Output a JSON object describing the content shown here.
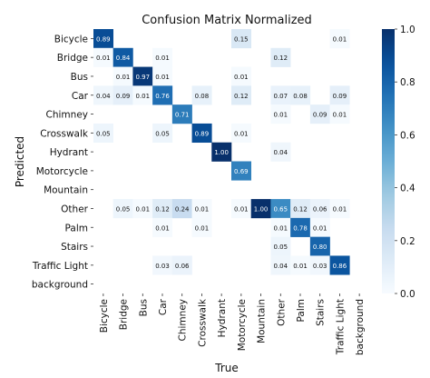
{
  "chart_data": {
    "type": "heatmap",
    "title": "Confusion Matrix Normalized",
    "xlabel": "True",
    "ylabel": "Predicted",
    "x_categories": [
      "Bicycle",
      "Bridge",
      "Bus",
      "Car",
      "Chimney",
      "Crosswalk",
      "Hydrant",
      "Motorcycle",
      "Mountain",
      "Other",
      "Palm",
      "Stairs",
      "Traffic Light",
      "background"
    ],
    "y_categories": [
      "Bicycle",
      "Bridge",
      "Bus",
      "Car",
      "Chimney",
      "Crosswalk",
      "Hydrant",
      "Motorcycle",
      "Mountain",
      "Other",
      "Palm",
      "Stairs",
      "Traffic Light",
      "background"
    ],
    "cells": [
      {
        "row": 0,
        "col": 0,
        "value": 0.89
      },
      {
        "row": 0,
        "col": 7,
        "value": 0.15
      },
      {
        "row": 0,
        "col": 12,
        "value": 0.01
      },
      {
        "row": 1,
        "col": 0,
        "value": 0.01
      },
      {
        "row": 1,
        "col": 1,
        "value": 0.84
      },
      {
        "row": 1,
        "col": 3,
        "value": 0.01
      },
      {
        "row": 1,
        "col": 9,
        "value": 0.12
      },
      {
        "row": 2,
        "col": 1,
        "value": 0.01
      },
      {
        "row": 2,
        "col": 2,
        "value": 0.97
      },
      {
        "row": 2,
        "col": 3,
        "value": 0.01
      },
      {
        "row": 2,
        "col": 7,
        "value": 0.01
      },
      {
        "row": 3,
        "col": 0,
        "value": 0.04
      },
      {
        "row": 3,
        "col": 1,
        "value": 0.09
      },
      {
        "row": 3,
        "col": 2,
        "value": 0.01
      },
      {
        "row": 3,
        "col": 3,
        "value": 0.76
      },
      {
        "row": 3,
        "col": 5,
        "value": 0.08
      },
      {
        "row": 3,
        "col": 7,
        "value": 0.12
      },
      {
        "row": 3,
        "col": 9,
        "value": 0.07
      },
      {
        "row": 3,
        "col": 10,
        "value": 0.08
      },
      {
        "row": 3,
        "col": 12,
        "value": 0.09
      },
      {
        "row": 4,
        "col": 4,
        "value": 0.71
      },
      {
        "row": 4,
        "col": 9,
        "value": 0.01
      },
      {
        "row": 4,
        "col": 11,
        "value": 0.09
      },
      {
        "row": 4,
        "col": 12,
        "value": 0.01
      },
      {
        "row": 5,
        "col": 0,
        "value": 0.05
      },
      {
        "row": 5,
        "col": 3,
        "value": 0.05
      },
      {
        "row": 5,
        "col": 5,
        "value": 0.89
      },
      {
        "row": 5,
        "col": 7,
        "value": 0.01
      },
      {
        "row": 6,
        "col": 6,
        "value": 1.0
      },
      {
        "row": 6,
        "col": 9,
        "value": 0.04
      },
      {
        "row": 7,
        "col": 7,
        "value": 0.69
      },
      {
        "row": 9,
        "col": 1,
        "value": 0.05
      },
      {
        "row": 9,
        "col": 2,
        "value": 0.01
      },
      {
        "row": 9,
        "col": 3,
        "value": 0.12
      },
      {
        "row": 9,
        "col": 4,
        "value": 0.24
      },
      {
        "row": 9,
        "col": 5,
        "value": 0.01
      },
      {
        "row": 9,
        "col": 7,
        "value": 0.01
      },
      {
        "row": 9,
        "col": 8,
        "value": 1.0
      },
      {
        "row": 9,
        "col": 9,
        "value": 0.65
      },
      {
        "row": 9,
        "col": 10,
        "value": 0.12
      },
      {
        "row": 9,
        "col": 11,
        "value": 0.06
      },
      {
        "row": 9,
        "col": 12,
        "value": 0.01
      },
      {
        "row": 10,
        "col": 3,
        "value": 0.01
      },
      {
        "row": 10,
        "col": 5,
        "value": 0.01
      },
      {
        "row": 10,
        "col": 9,
        "value": 0.01
      },
      {
        "row": 10,
        "col": 10,
        "value": 0.78
      },
      {
        "row": 10,
        "col": 11,
        "value": 0.01
      },
      {
        "row": 11,
        "col": 9,
        "value": 0.05
      },
      {
        "row": 11,
        "col": 11,
        "value": 0.8
      },
      {
        "row": 12,
        "col": 3,
        "value": 0.03
      },
      {
        "row": 12,
        "col": 4,
        "value": 0.06
      },
      {
        "row": 12,
        "col": 9,
        "value": 0.04
      },
      {
        "row": 12,
        "col": 10,
        "value": 0.01
      },
      {
        "row": 12,
        "col": 11,
        "value": 0.03
      },
      {
        "row": 12,
        "col": 12,
        "value": 0.86
      }
    ],
    "colorbar": {
      "range": [
        0.0,
        1.0
      ],
      "ticks": [
        "0.0",
        "0.2",
        "0.4",
        "0.6",
        "0.8",
        "1.0"
      ]
    },
    "colormap": {
      "low": "#f7fbff",
      "high": "#08306b"
    }
  }
}
